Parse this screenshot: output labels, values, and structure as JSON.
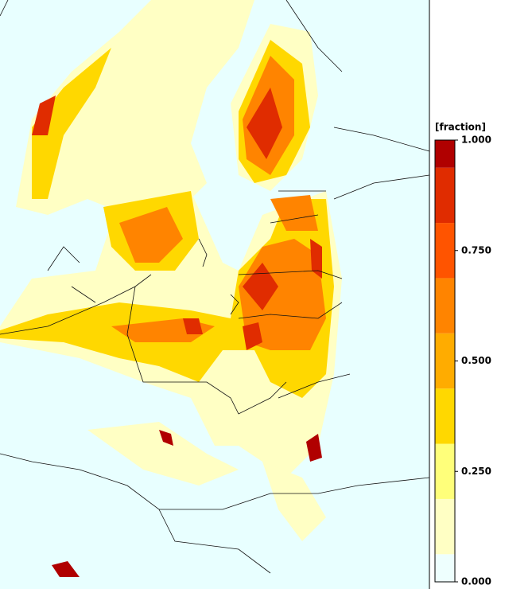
{
  "chart_data": {
    "type": "map",
    "legend_title": "[fraction]",
    "clim": [
      0,
      1
    ],
    "levels": [
      0,
      0.0625,
      0.1875,
      0.3125,
      0.4375,
      0.5625,
      0.6875,
      0.8125,
      0.9375,
      1
    ],
    "colors": [
      "#eefffe",
      "#ffffc4",
      "#ffff7a",
      "#ffd800",
      "#ffac00",
      "#ff8400",
      "#ff5400",
      "#e02c00",
      "#b00000"
    ],
    "ticks": [
      {
        "value": 0,
        "label": "0.000"
      },
      {
        "value": 0.25,
        "label": "0.250"
      },
      {
        "value": 0.5,
        "label": "0.500"
      },
      {
        "value": 0.75,
        "label": "0.750"
      },
      {
        "value": 1,
        "label": "1.000"
      }
    ]
  }
}
